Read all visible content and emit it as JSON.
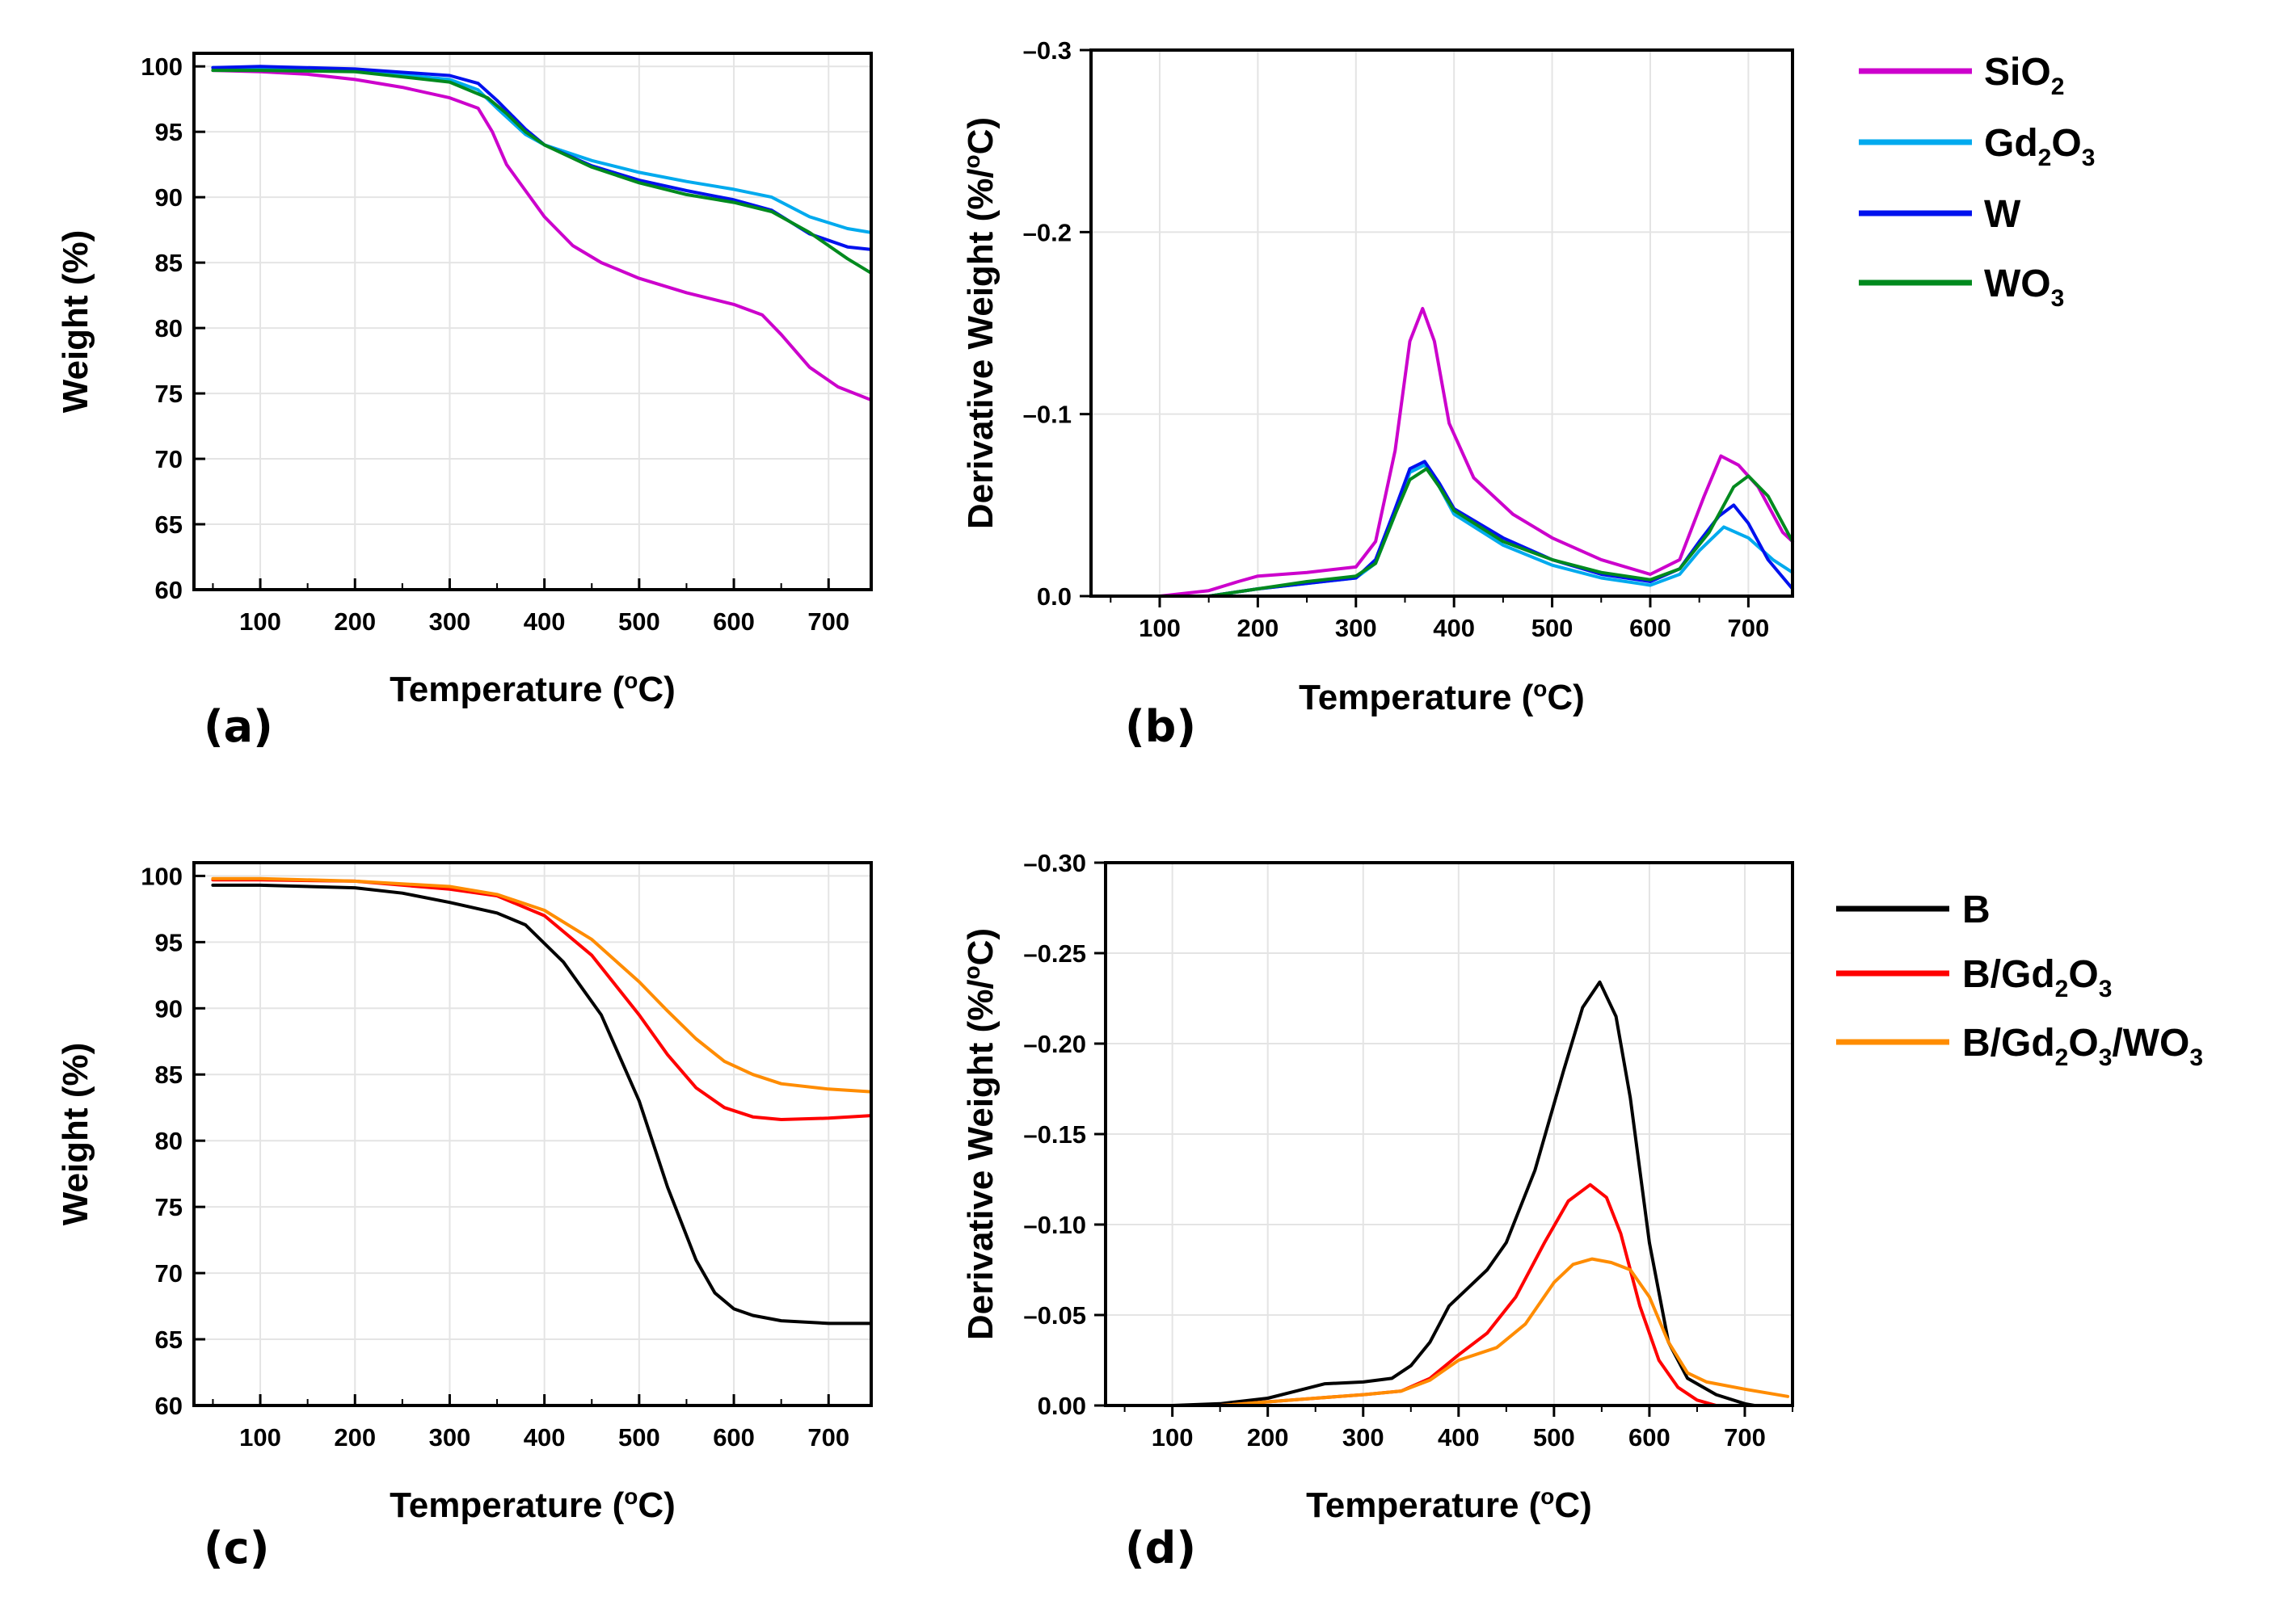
{
  "colors": {
    "SiO2": "#cc00cc",
    "Gd2O3": "#00aaee",
    "W": "#0011ee",
    "WO3": "#008a1e",
    "B": "#000000",
    "B/Gd2O3": "#ff0000",
    "B/Gd2O3/WO3": "#ff8c00"
  },
  "legend_top": [
    {
      "key": "SiO2",
      "base": "SiO",
      "sub": "2",
      "mid": "",
      "sub2": ""
    },
    {
      "key": "Gd2O3",
      "base": "Gd",
      "sub": "2",
      "mid": "O",
      "sub2": "3"
    },
    {
      "key": "W",
      "base": "W",
      "sub": "",
      "mid": "",
      "sub2": ""
    },
    {
      "key": "WO3",
      "base": "WO",
      "sub": "3",
      "mid": "",
      "sub2": ""
    }
  ],
  "legend_bottom": [
    {
      "key": "B",
      "parts": [
        [
          "B",
          false
        ]
      ]
    },
    {
      "key": "B/Gd2O3",
      "parts": [
        [
          "B/Gd",
          false
        ],
        [
          "2",
          true
        ],
        [
          "O",
          false
        ],
        [
          "3",
          true
        ]
      ]
    },
    {
      "key": "B/Gd2O3/WO3",
      "parts": [
        [
          "B/Gd",
          false
        ],
        [
          "2",
          true
        ],
        [
          "O",
          false
        ],
        [
          "3",
          true
        ],
        [
          "/WO",
          false
        ],
        [
          "3",
          true
        ]
      ]
    }
  ],
  "chart_data": [
    {
      "panel": "(a)",
      "type": "line",
      "xlabel": "Temperature (oC)",
      "ylabel": "Weight (%)",
      "xlim": [
        30,
        745
      ],
      "ylim": [
        60,
        101
      ],
      "xticks": [
        100,
        200,
        300,
        400,
        500,
        600,
        700
      ],
      "yticks": [
        60,
        65,
        70,
        75,
        80,
        85,
        90,
        95,
        100
      ],
      "ytick_labels": [
        "60",
        "65",
        "70",
        "75",
        "80",
        "85",
        "90",
        "95",
        "100"
      ],
      "series": [
        {
          "name": "SiO2",
          "x": [
            50,
            100,
            150,
            200,
            250,
            300,
            330,
            345,
            360,
            380,
            400,
            430,
            460,
            500,
            550,
            600,
            630,
            650,
            680,
            710,
            745
          ],
          "y": [
            99.7,
            99.6,
            99.4,
            99.0,
            98.4,
            97.6,
            96.8,
            95.0,
            92.5,
            90.5,
            88.5,
            86.3,
            85.0,
            83.8,
            82.7,
            81.8,
            81.0,
            79.5,
            77.0,
            75.5,
            74.5
          ]
        },
        {
          "name": "Gd2O3",
          "x": [
            50,
            100,
            200,
            300,
            330,
            350,
            380,
            400,
            450,
            500,
            550,
            600,
            640,
            680,
            720,
            745
          ],
          "y": [
            99.9,
            99.9,
            99.7,
            99.0,
            98.2,
            96.8,
            94.8,
            94.0,
            92.8,
            91.9,
            91.2,
            90.6,
            90.0,
            88.5,
            87.6,
            87.3
          ]
        },
        {
          "name": "W",
          "x": [
            50,
            100,
            200,
            300,
            330,
            350,
            380,
            400,
            450,
            500,
            550,
            600,
            640,
            680,
            720,
            745
          ],
          "y": [
            99.9,
            100.0,
            99.8,
            99.3,
            98.7,
            97.4,
            95.2,
            94.0,
            92.4,
            91.3,
            90.5,
            89.8,
            89.0,
            87.2,
            86.2,
            86.0
          ]
        },
        {
          "name": "WO3",
          "x": [
            50,
            100,
            200,
            300,
            340,
            360,
            380,
            400,
            450,
            500,
            550,
            600,
            640,
            680,
            720,
            745
          ],
          "y": [
            99.7,
            99.7,
            99.6,
            98.8,
            97.6,
            96.4,
            95.0,
            94.0,
            92.3,
            91.1,
            90.2,
            89.6,
            88.9,
            87.3,
            85.3,
            84.2
          ]
        }
      ]
    },
    {
      "panel": "(b)",
      "type": "line",
      "xlabel": "Temperature (oC)",
      "ylabel": "Derivative Weight (%/oC)",
      "xlim": [
        30,
        745
      ],
      "ylim": [
        0.0,
        -0.3
      ],
      "xticks": [
        100,
        200,
        300,
        400,
        500,
        600,
        700
      ],
      "yticks": [
        0.0,
        -0.1,
        -0.2,
        -0.3
      ],
      "ytick_labels": [
        "0.0",
        "-0.1",
        "-0.2",
        "-0.3"
      ],
      "series": [
        {
          "name": "SiO2",
          "x": [
            60,
            100,
            150,
            180,
            200,
            250,
            300,
            320,
            340,
            355,
            368,
            380,
            395,
            420,
            460,
            500,
            550,
            600,
            630,
            655,
            672,
            690,
            710,
            735,
            745
          ],
          "y": [
            0.0,
            0.0,
            -0.003,
            -0.008,
            -0.011,
            -0.013,
            -0.016,
            -0.03,
            -0.08,
            -0.14,
            -0.158,
            -0.14,
            -0.095,
            -0.065,
            -0.045,
            -0.032,
            -0.02,
            -0.012,
            -0.02,
            -0.055,
            -0.077,
            -0.072,
            -0.06,
            -0.035,
            -0.03
          ]
        },
        {
          "name": "Gd2O3",
          "x": [
            50,
            100,
            150,
            200,
            250,
            300,
            320,
            340,
            355,
            370,
            385,
            400,
            450,
            500,
            550,
            600,
            630,
            650,
            675,
            700,
            725,
            745
          ],
          "y": [
            0.0,
            0.0,
            0.0,
            -0.004,
            -0.007,
            -0.01,
            -0.018,
            -0.045,
            -0.068,
            -0.072,
            -0.06,
            -0.045,
            -0.028,
            -0.017,
            -0.01,
            -0.006,
            -0.012,
            -0.025,
            -0.038,
            -0.032,
            -0.02,
            -0.013
          ]
        },
        {
          "name": "W",
          "x": [
            50,
            100,
            150,
            200,
            250,
            300,
            320,
            340,
            355,
            370,
            385,
            400,
            450,
            500,
            550,
            600,
            630,
            650,
            670,
            685,
            700,
            720,
            745
          ],
          "y": [
            0.0,
            0.0,
            0.0,
            -0.004,
            -0.007,
            -0.01,
            -0.02,
            -0.048,
            -0.07,
            -0.074,
            -0.062,
            -0.048,
            -0.032,
            -0.02,
            -0.012,
            -0.008,
            -0.015,
            -0.03,
            -0.044,
            -0.05,
            -0.04,
            -0.02,
            -0.004
          ]
        },
        {
          "name": "WO3",
          "x": [
            50,
            100,
            150,
            200,
            250,
            300,
            320,
            340,
            355,
            372,
            385,
            400,
            450,
            500,
            550,
            600,
            630,
            660,
            685,
            700,
            720,
            745
          ],
          "y": [
            0.0,
            0.0,
            0.0,
            -0.004,
            -0.008,
            -0.011,
            -0.018,
            -0.045,
            -0.064,
            -0.07,
            -0.06,
            -0.047,
            -0.03,
            -0.02,
            -0.013,
            -0.009,
            -0.015,
            -0.035,
            -0.06,
            -0.066,
            -0.055,
            -0.03
          ]
        }
      ]
    },
    {
      "panel": "(c)",
      "type": "line",
      "xlabel": "Temperature (oC)",
      "ylabel": "Weight (%)",
      "xlim": [
        30,
        745
      ],
      "ylim": [
        60,
        101
      ],
      "xticks": [
        100,
        200,
        300,
        400,
        500,
        600,
        700
      ],
      "yticks": [
        60,
        65,
        70,
        75,
        80,
        85,
        90,
        95,
        100
      ],
      "ytick_labels": [
        "60",
        "65",
        "70",
        "75",
        "80",
        "85",
        "90",
        "95",
        "100"
      ],
      "series": [
        {
          "name": "B",
          "x": [
            50,
            100,
            200,
            250,
            300,
            350,
            380,
            420,
            460,
            500,
            530,
            560,
            580,
            600,
            620,
            650,
            700,
            745
          ],
          "y": [
            99.3,
            99.3,
            99.1,
            98.7,
            98.0,
            97.2,
            96.3,
            93.5,
            89.5,
            83.0,
            76.5,
            71.0,
            68.5,
            67.3,
            66.8,
            66.4,
            66.2,
            66.2
          ]
        },
        {
          "name": "B/Gd2O3",
          "x": [
            50,
            100,
            200,
            300,
            350,
            400,
            450,
            500,
            530,
            560,
            590,
            620,
            650,
            700,
            745
          ],
          "y": [
            99.7,
            99.7,
            99.6,
            99.0,
            98.5,
            97.0,
            94.0,
            89.5,
            86.5,
            84.0,
            82.5,
            81.8,
            81.6,
            81.7,
            81.9
          ]
        },
        {
          "name": "B/Gd2O3/WO3",
          "x": [
            50,
            100,
            200,
            300,
            350,
            400,
            450,
            500,
            530,
            560,
            590,
            620,
            650,
            700,
            745
          ],
          "y": [
            99.8,
            99.8,
            99.6,
            99.2,
            98.6,
            97.4,
            95.2,
            92.0,
            89.8,
            87.7,
            86.0,
            85.0,
            84.3,
            83.9,
            83.7
          ]
        }
      ]
    },
    {
      "panel": "(d)",
      "type": "line",
      "xlabel": "Temperature (oC)",
      "ylabel": "Derivative Weight (%/oC)",
      "xlim": [
        30,
        750
      ],
      "ylim": [
        0.0,
        -0.3
      ],
      "xticks": [
        100,
        200,
        300,
        400,
        500,
        600,
        700
      ],
      "yticks": [
        0.0,
        -0.05,
        -0.1,
        -0.15,
        -0.2,
        -0.25,
        -0.3
      ],
      "ytick_labels": [
        "0.00",
        "-0.05",
        "-0.10",
        "-0.15",
        "-0.20",
        "-0.25",
        "-0.30"
      ],
      "series": [
        {
          "name": "B",
          "x": [
            60,
            100,
            150,
            200,
            230,
            260,
            300,
            330,
            350,
            370,
            390,
            410,
            430,
            450,
            480,
            510,
            530,
            548,
            565,
            580,
            600,
            620,
            640,
            670,
            700,
            710
          ],
          "y": [
            0.0,
            0.0,
            -0.001,
            -0.004,
            -0.008,
            -0.012,
            -0.013,
            -0.015,
            -0.022,
            -0.035,
            -0.055,
            -0.065,
            -0.075,
            -0.09,
            -0.13,
            -0.185,
            -0.22,
            -0.234,
            -0.215,
            -0.17,
            -0.09,
            -0.035,
            -0.015,
            -0.006,
            -0.001,
            0.0
          ]
        },
        {
          "name": "B/Gd2O3",
          "x": [
            60,
            150,
            250,
            300,
            340,
            370,
            400,
            430,
            460,
            490,
            515,
            538,
            555,
            570,
            590,
            610,
            630,
            650,
            670
          ],
          "y": [
            0.0,
            0.0,
            -0.004,
            -0.006,
            -0.008,
            -0.015,
            -0.028,
            -0.04,
            -0.06,
            -0.09,
            -0.113,
            -0.122,
            -0.115,
            -0.095,
            -0.055,
            -0.025,
            -0.01,
            -0.003,
            0.0
          ]
        },
        {
          "name": "B/Gd2O3/WO3",
          "x": [
            60,
            150,
            250,
            300,
            340,
            370,
            400,
            440,
            470,
            500,
            520,
            540,
            560,
            580,
            600,
            620,
            640,
            660,
            700,
            745
          ],
          "y": [
            0.0,
            0.0,
            -0.004,
            -0.006,
            -0.008,
            -0.014,
            -0.025,
            -0.032,
            -0.045,
            -0.068,
            -0.078,
            -0.081,
            -0.079,
            -0.075,
            -0.06,
            -0.035,
            -0.018,
            -0.013,
            -0.009,
            -0.005
          ]
        }
      ]
    }
  ]
}
